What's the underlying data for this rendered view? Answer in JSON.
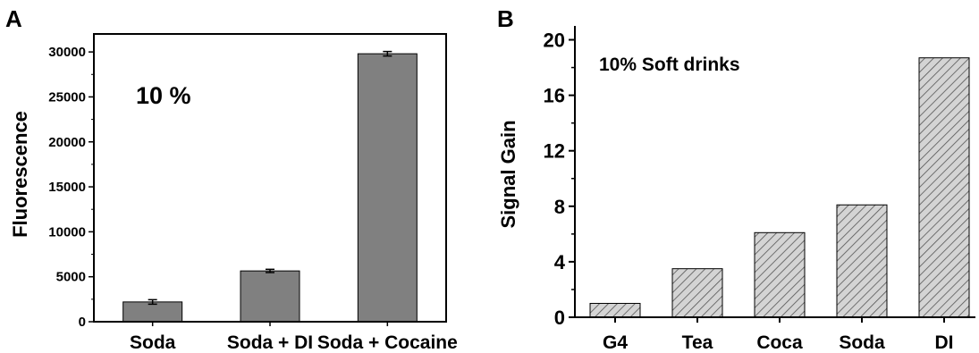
{
  "chart_data": [
    {
      "panel": "A",
      "type": "bar",
      "categories": [
        "Soda",
        "Soda + DI",
        "Soda + Cocaine"
      ],
      "values": [
        2200,
        5650,
        29800
      ],
      "errors": [
        250,
        180,
        250
      ],
      "ylabel": "Fluorescence",
      "xlabel": "",
      "ylim": [
        0,
        32000
      ],
      "yticks": [
        0,
        5000,
        10000,
        15000,
        20000,
        25000,
        30000
      ],
      "annotation": "10 %",
      "bar_color": "#808080",
      "grid": false
    },
    {
      "panel": "B",
      "type": "bar",
      "categories": [
        "G4",
        "Tea",
        "Coca",
        "Soda",
        "DI"
      ],
      "values": [
        1.0,
        3.5,
        6.1,
        8.1,
        18.7
      ],
      "ylabel": "Signal Gain",
      "xlabel": "",
      "ylim": [
        0,
        21
      ],
      "yticks": [
        0,
        4,
        8,
        12,
        16,
        20
      ],
      "annotation": "10% Soft drinks",
      "bar_color": "#c8c8c8",
      "bar_pattern": "diagonal-hatch",
      "grid": false
    }
  ]
}
